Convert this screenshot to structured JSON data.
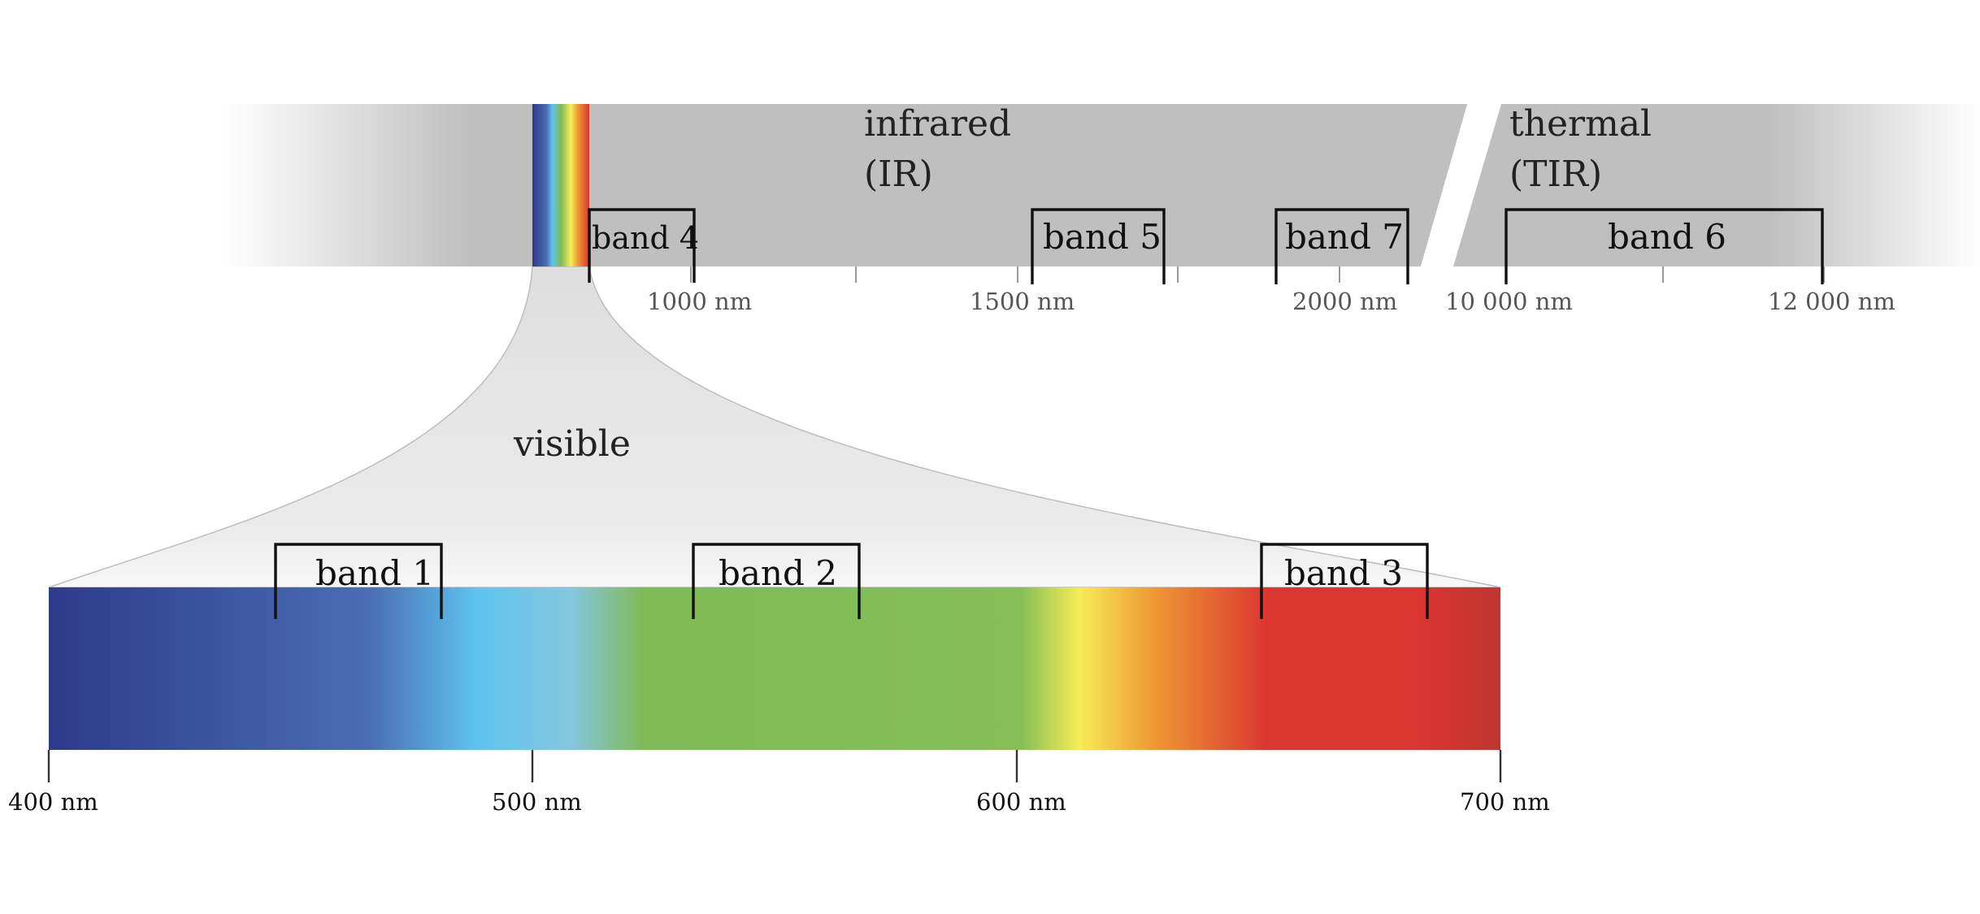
{
  "regions": {
    "infrared_label": "infrared",
    "infrared_abbr": "(IR)",
    "thermal_label": "thermal",
    "thermal_abbr": "(TIR)",
    "visible_label": "visible"
  },
  "top_bands": {
    "band4": "band 4",
    "band5": "band 5",
    "band7": "band 7",
    "band6": "band 6"
  },
  "top_ticks": {
    "t1000": "1000 nm",
    "t1500": "1500 nm",
    "t2000": "2000 nm",
    "t10000": "10 000 nm",
    "t12000": "12 000 nm"
  },
  "visible_bands": {
    "band1": "band 1",
    "band2": "band 2",
    "band3": "band 3"
  },
  "visible_ticks": {
    "t400": "400 nm",
    "t500": "500 nm",
    "t600": "600 nm",
    "t700": "700 nm"
  },
  "colors": {
    "strip_gray": "#bfbfbf",
    "funnel_gray": "#e8e8e8",
    "violet_blue": "#2e3a8c",
    "blue": "#4a6db3",
    "cyan": "#5ec3ef",
    "green": "#7fba56",
    "yellow": "#f7ec55",
    "orange": "#ef9a35",
    "red": "#db3530"
  }
}
